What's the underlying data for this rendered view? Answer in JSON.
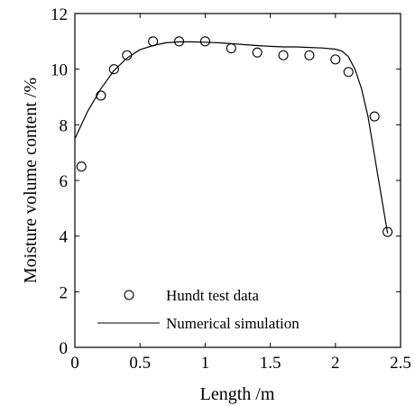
{
  "chart_data": {
    "type": "scatter",
    "title": "",
    "xlabel": "Length /m",
    "ylabel": "Moisture volume content /%",
    "xlim": [
      0,
      2.5
    ],
    "ylim": [
      0,
      12
    ],
    "xticks": [
      0,
      0.5,
      1,
      1.5,
      2,
      2.5
    ],
    "xtick_labels": [
      "0",
      "0.5",
      "1",
      "1.5",
      "2",
      "2.5"
    ],
    "yticks": [
      0,
      2,
      4,
      6,
      8,
      10,
      12
    ],
    "ytick_labels": [
      "0",
      "2",
      "4",
      "6",
      "8",
      "10",
      "12"
    ],
    "grid": false,
    "legend_position": "bottom-left",
    "series": [
      {
        "name": "Hundt test data",
        "kind": "markers",
        "marker": "open-circle",
        "x": [
          0.05,
          0.2,
          0.3,
          0.4,
          0.6,
          0.8,
          1.0,
          1.2,
          1.4,
          1.6,
          1.8,
          2.0,
          2.1,
          2.3,
          2.4
        ],
        "y": [
          6.5,
          9.05,
          10.0,
          10.5,
          11.0,
          11.0,
          11.0,
          10.75,
          10.6,
          10.5,
          10.5,
          10.35,
          9.9,
          8.3,
          4.15
        ]
      },
      {
        "name": "Numerical simulation",
        "kind": "line",
        "x": [
          0.0,
          0.05,
          0.1,
          0.15,
          0.2,
          0.3,
          0.4,
          0.5,
          0.6,
          0.7,
          0.8,
          0.9,
          1.0,
          1.1,
          1.2,
          1.3,
          1.4,
          1.5,
          1.6,
          1.7,
          1.8,
          1.9,
          2.0,
          2.05,
          2.1,
          2.15,
          2.2,
          2.25,
          2.3,
          2.35,
          2.4
        ],
        "y": [
          7.5,
          8.0,
          8.5,
          8.9,
          9.3,
          9.95,
          10.4,
          10.7,
          10.85,
          10.95,
          10.98,
          10.98,
          10.97,
          10.95,
          10.92,
          10.88,
          10.85,
          10.82,
          10.8,
          10.8,
          10.78,
          10.76,
          10.72,
          10.65,
          10.45,
          10.0,
          9.3,
          8.3,
          6.9,
          5.5,
          4.1
        ]
      }
    ]
  }
}
